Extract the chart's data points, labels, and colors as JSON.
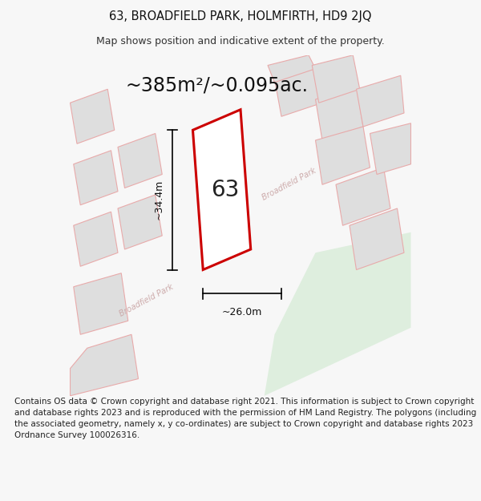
{
  "title_line1": "63, BROADFIELD PARK, HOLMFIRTH, HD9 2JQ",
  "title_line2": "Map shows position and indicative extent of the property.",
  "area_text": "~385m²/~0.095ac.",
  "dim_vertical": "~34.4m",
  "dim_horizontal": "~26.0m",
  "plot_number": "63",
  "footer_text": "Contains OS data © Crown copyright and database right 2021. This information is subject to Crown copyright and database rights 2023 and is reproduced with the permission of HM Land Registry. The polygons (including the associated geometry, namely x, y co-ordinates) are subject to Crown copyright and database rights 2023 Ordnance Survey 100026316.",
  "bg_color": "#f7f7f7",
  "map_bg": "#f5f5f5",
  "plot_fill": "#ffffff",
  "plot_edge": "#cc0000",
  "neighbor_fill": "#dedede",
  "neighbor_edge": "#e8aaaa",
  "green_fill": "#deeede",
  "road_label_color": "#ccaaaa",
  "title_fontsize": 10.5,
  "subtitle_fontsize": 9,
  "area_fontsize": 17,
  "dim_fontsize": 9,
  "plot_num_fontsize": 20,
  "footer_fontsize": 7.5
}
